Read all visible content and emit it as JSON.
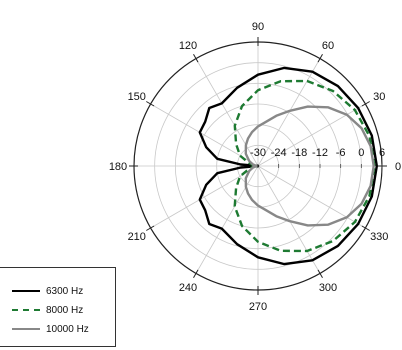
{
  "chart_data": {
    "type": "polar-line",
    "angle_ticks": [
      "0",
      "30",
      "60",
      "90",
      "120",
      "150",
      "180",
      "210",
      "240",
      "270",
      "300",
      "330"
    ],
    "radial_ticks": [
      "-30",
      "-24",
      "-18",
      "-12",
      "-6",
      "0",
      "6"
    ],
    "radial_range": [
      -30,
      6
    ],
    "angle_unit": "degrees",
    "grid": true,
    "legend_position": "bottom-left",
    "series": [
      {
        "name": "6300 Hz",
        "color": "#000000",
        "style": "solid",
        "theta": [
          0,
          15,
          30,
          45,
          60,
          75,
          90,
          105,
          120,
          130,
          140,
          150,
          160,
          170,
          175,
          180,
          185,
          190,
          200,
          210,
          220,
          230,
          240,
          255,
          270,
          285,
          300,
          315,
          330,
          345,
          360
        ],
        "r": [
          4.5,
          4.2,
          3.6,
          2.8,
          1.6,
          -0.5,
          -3.5,
          -6.5,
          -9,
          -8,
          -10,
          -10.5,
          -14,
          -18,
          -25,
          -30,
          -25,
          -18,
          -14,
          -10.5,
          -10,
          -8,
          -9,
          -6.5,
          -3.5,
          -0.5,
          1.6,
          2.8,
          3.6,
          4.2,
          4.5
        ]
      },
      {
        "name": "8000 Hz",
        "color": "#1e7a32",
        "style": "dashed",
        "theta": [
          0,
          15,
          30,
          45,
          60,
          75,
          90,
          105,
          120,
          135,
          150,
          160,
          170,
          175,
          180,
          185,
          190,
          200,
          210,
          225,
          240,
          255,
          270,
          285,
          300,
          315,
          330,
          345,
          360
        ],
        "r": [
          3.8,
          3.5,
          2.5,
          0.8,
          -1.5,
          -4.5,
          -8,
          -12,
          -16.5,
          -21,
          -24,
          -27,
          -28.5,
          -29.5,
          -30,
          -29.5,
          -28.5,
          -27,
          -24,
          -21,
          -16.5,
          -12,
          -8,
          -4.5,
          -1.5,
          0.8,
          2.5,
          3.5,
          3.8
        ]
      },
      {
        "name": "10000 Hz",
        "color": "#888888",
        "style": "solid",
        "theta": [
          0,
          10,
          20,
          30,
          40,
          50,
          60,
          70,
          80,
          90,
          100,
          110,
          120,
          135,
          150,
          165,
          180,
          195,
          210,
          225,
          240,
          250,
          260,
          270,
          280,
          290,
          300,
          310,
          320,
          330,
          340,
          350,
          360
        ],
        "r": [
          3.6,
          3.2,
          2,
          -0.2,
          -3.5,
          -7.5,
          -11.5,
          -14.5,
          -17,
          -18.5,
          -20,
          -21.5,
          -23,
          -25,
          -27,
          -28.5,
          -29.5,
          -28.5,
          -27,
          -25,
          -23,
          -21.5,
          -20,
          -18.5,
          -17,
          -14.5,
          -11.5,
          -7.5,
          -3.5,
          -0.2,
          2,
          3.2,
          3.6
        ]
      }
    ]
  }
}
